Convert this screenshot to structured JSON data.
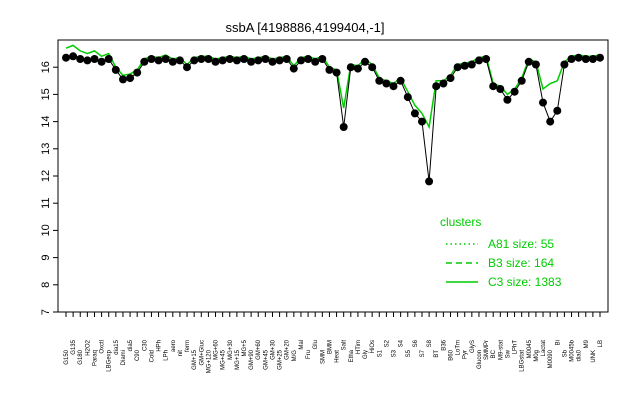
{
  "chart_data": {
    "type": "line",
    "title": "ssbA [4198886,4199404,-1]",
    "xlabel": "",
    "ylabel": "",
    "ylim": [
      7,
      17
    ],
    "yticks": [
      7,
      8,
      9,
      10,
      11,
      12,
      13,
      14,
      15,
      16
    ],
    "grid": false,
    "legend_placement": "right",
    "legend": {
      "title": "clusters",
      "entries": [
        {
          "label": "A81 size: 55",
          "style": "dotted"
        },
        {
          "label": "B3 size: 164",
          "style": "dashed"
        },
        {
          "label": "C3 size: 1383",
          "style": "solid"
        }
      ]
    },
    "series_color": "#00cc00",
    "line_color": "#000000",
    "x_labels": [
      "G150",
      "G135",
      "G180",
      "H2O2",
      "Paraq",
      "Oxctl",
      "LBGexp",
      "dia15",
      "Diami",
      "dia5",
      "C90",
      "C30",
      "Cold",
      "HPh",
      "LPh",
      "aero",
      "nit",
      "ferm",
      "GM+15",
      "GM+Gluc",
      "MG+120",
      "MG+60",
      "MG+45",
      "MG+30",
      "MG+15",
      "MG+5",
      "GM+90",
      "GM+60",
      "GM+45",
      "GM+30",
      "GM+25",
      "GM+20",
      "M/G",
      "Mal",
      "Fru",
      "Glu",
      "SMM",
      "BMM",
      "Heat",
      "Salt",
      "Etha",
      "HTim",
      "Gly",
      "HiOs",
      "S1",
      "S2",
      "S3",
      "S4",
      "S5",
      "S6",
      "S7",
      "S8",
      "BT",
      "B36",
      "B60",
      "LoTm",
      "Pyr",
      "GlyS",
      "Glucon",
      "SMMPr",
      "BC",
      "M9-stat",
      "Sw",
      "LPhT",
      "LBGstat",
      "M0045",
      "M0g",
      "Lactat",
      "M0090",
      "Bi",
      "Sb",
      "M0045b",
      "dia0",
      "M9",
      "UNK",
      "LB"
    ],
    "black_series": [
      16.35,
      16.4,
      16.3,
      16.25,
      16.3,
      16.2,
      16.3,
      15.9,
      15.55,
      15.6,
      15.8,
      16.2,
      16.3,
      16.25,
      16.3,
      16.2,
      16.25,
      16.0,
      16.25,
      16.3,
      16.3,
      16.2,
      16.25,
      16.3,
      16.25,
      16.3,
      16.2,
      16.25,
      16.3,
      16.2,
      16.25,
      16.3,
      15.95,
      16.25,
      16.3,
      16.2,
      16.3,
      15.9,
      15.8,
      13.8,
      16.0,
      15.95,
      16.2,
      16.0,
      15.5,
      15.4,
      15.3,
      15.5,
      14.9,
      14.3,
      14.0,
      11.8,
      15.3,
      15.4,
      15.6,
      16.0,
      16.05,
      16.1,
      16.25,
      16.3,
      15.3,
      15.2,
      14.8,
      15.1,
      15.5,
      16.2,
      16.1,
      14.7,
      14.0,
      14.4,
      16.1,
      16.3,
      16.35,
      16.3,
      16.3,
      16.35
    ],
    "green_series": [
      16.7,
      16.8,
      16.6,
      16.5,
      16.6,
      16.4,
      16.5,
      16.0,
      15.7,
      15.75,
      15.9,
      16.3,
      16.4,
      16.35,
      16.45,
      16.3,
      16.35,
      16.1,
      16.35,
      16.4,
      16.4,
      16.3,
      16.35,
      16.4,
      16.35,
      16.4,
      16.3,
      16.35,
      16.4,
      16.3,
      16.35,
      16.4,
      16.05,
      16.35,
      16.4,
      16.3,
      16.4,
      16.0,
      15.9,
      14.5,
      16.1,
      16.05,
      16.3,
      16.1,
      15.6,
      15.5,
      15.4,
      15.6,
      15.1,
      14.6,
      14.3,
      13.8,
      15.5,
      15.5,
      15.7,
      16.1,
      16.15,
      16.2,
      16.35,
      16.4,
      15.4,
      15.3,
      15.0,
      15.2,
      15.6,
      16.3,
      16.2,
      15.2,
      15.4,
      15.5,
      16.2,
      16.4,
      16.45,
      16.4,
      16.4,
      16.45
    ]
  }
}
